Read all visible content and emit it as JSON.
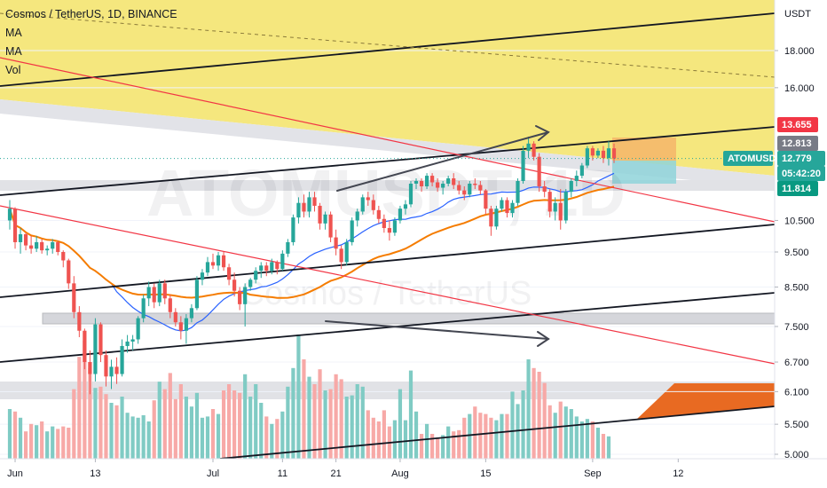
{
  "header": {
    "title": "Cosmos / TetherUS, 1D, BINANCE",
    "indicators": [
      "MA",
      "MA",
      "Vol"
    ]
  },
  "watermark": {
    "symbol": "ATOMUSDT, 1D",
    "name": "Cosmos / TetherUS"
  },
  "chart_data": {
    "type": "candlestick",
    "currency": "USDT",
    "y_scale": "log",
    "ylim": [
      4.85,
      22.5
    ],
    "y_ticks": [
      "18.000",
      "16.000",
      "10.500",
      "9.500",
      "8.500",
      "7.500",
      "6.700",
      "6.100",
      "5.500",
      "5.000"
    ],
    "x_ticks": [
      "Jun",
      "13",
      "Jul",
      "11",
      "21",
      "Aug",
      "15",
      "Sep",
      "12"
    ],
    "price_labels": [
      {
        "name": "level-high",
        "text": "13.655",
        "value": 13.655,
        "color": "#f23645"
      },
      {
        "name": "level-mid",
        "text": "12.813",
        "value": 12.813,
        "color": "#787b86"
      },
      {
        "name": "symbol",
        "text": "ATOMUSDT",
        "value": 12.779,
        "color": "#26a69a"
      },
      {
        "name": "last-price",
        "text": "12.779",
        "value": 12.779,
        "color": "#26a69a"
      },
      {
        "name": "countdown",
        "text": "05:42:20",
        "value": 12.45,
        "color": "#26a69a"
      },
      {
        "name": "level-low",
        "text": "11.814",
        "value": 11.814,
        "color": "#089981"
      }
    ],
    "up_color": "#26a69a",
    "down_color": "#ef5350",
    "ma_fast_color": "#2962ff",
    "ma_slow_color": "#f57c00",
    "candles": [
      [
        10.5,
        11.2,
        10.2,
        10.9
      ],
      [
        10.9,
        10.95,
        9.6,
        9.8
      ],
      [
        9.8,
        10.25,
        9.45,
        10.05
      ],
      [
        10.05,
        10.1,
        9.55,
        9.7
      ],
      [
        9.7,
        10.0,
        9.45,
        9.6
      ],
      [
        9.6,
        10.0,
        9.5,
        9.8
      ],
      [
        9.8,
        9.9,
        9.45,
        9.55
      ],
      [
        9.55,
        9.7,
        9.4,
        9.6
      ],
      [
        9.6,
        9.9,
        9.45,
        9.8
      ],
      [
        9.8,
        9.85,
        9.4,
        9.5
      ],
      [
        9.5,
        9.55,
        9.05,
        9.25
      ],
      [
        9.25,
        9.3,
        8.45,
        8.6
      ],
      [
        8.6,
        8.8,
        7.7,
        7.85
      ],
      [
        7.85,
        8.0,
        7.25,
        7.4
      ],
      [
        7.4,
        7.45,
        6.55,
        6.7
      ],
      [
        6.7,
        6.95,
        6.05,
        6.45
      ],
      [
        6.45,
        7.7,
        6.3,
        7.55
      ],
      [
        7.55,
        7.6,
        6.7,
        6.85
      ],
      [
        6.85,
        6.95,
        6.2,
        6.4
      ],
      [
        6.4,
        6.75,
        6.15,
        6.6
      ],
      [
        6.6,
        6.8,
        6.25,
        6.45
      ],
      [
        6.45,
        7.2,
        6.4,
        7.05
      ],
      [
        7.05,
        7.3,
        6.9,
        7.15
      ],
      [
        7.15,
        7.3,
        6.95,
        7.2
      ],
      [
        7.2,
        7.75,
        7.1,
        7.7
      ],
      [
        7.7,
        8.3,
        7.6,
        8.2
      ],
      [
        8.2,
        8.65,
        8.0,
        8.5
      ],
      [
        8.5,
        8.6,
        7.95,
        8.1
      ],
      [
        8.1,
        8.7,
        8.0,
        8.6
      ],
      [
        8.6,
        8.7,
        8.05,
        8.2
      ],
      [
        8.2,
        8.3,
        7.7,
        7.85
      ],
      [
        7.85,
        7.95,
        7.5,
        7.6
      ],
      [
        7.6,
        7.75,
        7.2,
        7.4
      ],
      [
        7.4,
        7.8,
        7.1,
        7.7
      ],
      [
        7.7,
        8.05,
        7.6,
        7.95
      ],
      [
        7.95,
        8.8,
        7.9,
        8.7
      ],
      [
        8.7,
        9.0,
        8.55,
        8.9
      ],
      [
        8.9,
        9.35,
        8.8,
        9.2
      ],
      [
        9.2,
        9.45,
        9.0,
        9.1
      ],
      [
        9.1,
        9.5,
        8.95,
        9.4
      ],
      [
        9.4,
        9.5,
        8.95,
        9.05
      ],
      [
        9.05,
        9.15,
        8.55,
        8.7
      ],
      [
        8.7,
        8.9,
        8.25,
        8.4
      ],
      [
        8.4,
        8.5,
        7.9,
        8.05
      ],
      [
        8.05,
        8.6,
        7.5,
        8.5
      ],
      [
        8.5,
        8.75,
        8.4,
        8.7
      ],
      [
        8.7,
        9.05,
        8.6,
        8.95
      ],
      [
        8.95,
        9.2,
        8.75,
        9.1
      ],
      [
        9.1,
        9.2,
        8.8,
        8.95
      ],
      [
        8.95,
        9.3,
        8.85,
        9.2
      ],
      [
        9.2,
        9.25,
        8.85,
        9.0
      ],
      [
        9.0,
        9.55,
        8.95,
        9.45
      ],
      [
        9.45,
        9.9,
        9.35,
        9.8
      ],
      [
        9.8,
        10.7,
        9.7,
        10.6
      ],
      [
        10.6,
        11.3,
        10.4,
        11.1
      ],
      [
        11.1,
        11.4,
        10.6,
        10.8
      ],
      [
        10.8,
        11.5,
        10.6,
        11.3
      ],
      [
        11.3,
        11.5,
        10.8,
        11.0
      ],
      [
        11.0,
        11.1,
        10.2,
        10.4
      ],
      [
        10.4,
        10.8,
        10.2,
        10.7
      ],
      [
        10.7,
        10.8,
        9.8,
        9.95
      ],
      [
        9.95,
        10.2,
        9.4,
        9.6
      ],
      [
        9.6,
        9.7,
        9.0,
        9.2
      ],
      [
        9.2,
        9.9,
        9.1,
        9.8
      ],
      [
        9.8,
        10.6,
        9.7,
        10.5
      ],
      [
        10.5,
        10.9,
        10.3,
        10.8
      ],
      [
        10.8,
        11.4,
        10.7,
        11.3
      ],
      [
        11.3,
        11.5,
        11.0,
        11.2
      ],
      [
        11.2,
        11.4,
        10.7,
        10.85
      ],
      [
        10.85,
        11.0,
        10.4,
        10.55
      ],
      [
        10.55,
        10.7,
        10.1,
        10.25
      ],
      [
        10.25,
        10.5,
        9.85,
        10.1
      ],
      [
        10.1,
        10.6,
        10.0,
        10.5
      ],
      [
        10.5,
        11.0,
        10.4,
        10.9
      ],
      [
        10.9,
        11.2,
        10.7,
        11.05
      ],
      [
        11.05,
        11.9,
        10.95,
        11.8
      ],
      [
        11.8,
        12.0,
        11.6,
        11.9
      ],
      [
        11.9,
        12.0,
        11.5,
        11.7
      ],
      [
        11.7,
        12.2,
        11.6,
        12.1
      ],
      [
        12.1,
        12.2,
        11.7,
        11.85
      ],
      [
        11.85,
        12.0,
        11.5,
        11.65
      ],
      [
        11.65,
        11.9,
        11.4,
        11.8
      ],
      [
        11.8,
        12.1,
        11.7,
        12.0
      ],
      [
        12.0,
        12.2,
        11.6,
        11.75
      ],
      [
        11.75,
        11.9,
        11.4,
        11.55
      ],
      [
        11.55,
        11.7,
        11.2,
        11.4
      ],
      [
        11.4,
        11.9,
        11.3,
        11.8
      ],
      [
        11.8,
        12.0,
        11.6,
        11.75
      ],
      [
        11.75,
        11.9,
        11.4,
        11.55
      ],
      [
        11.55,
        11.6,
        10.7,
        10.9
      ],
      [
        10.9,
        11.0,
        10.0,
        10.3
      ],
      [
        10.3,
        11.0,
        10.2,
        10.9
      ],
      [
        10.9,
        11.3,
        10.8,
        11.2
      ],
      [
        11.2,
        11.3,
        10.6,
        10.75
      ],
      [
        10.75,
        11.2,
        10.6,
        11.1
      ],
      [
        11.1,
        12.0,
        11.0,
        11.9
      ],
      [
        11.9,
        13.3,
        11.8,
        13.1
      ],
      [
        13.1,
        13.7,
        12.8,
        13.4
      ],
      [
        13.4,
        13.5,
        12.7,
        12.85
      ],
      [
        12.85,
        13.0,
        11.5,
        11.7
      ],
      [
        11.7,
        11.9,
        11.3,
        11.5
      ],
      [
        11.5,
        11.6,
        10.6,
        10.8
      ],
      [
        10.8,
        11.3,
        10.5,
        11.1
      ],
      [
        11.1,
        11.6,
        10.2,
        10.5
      ],
      [
        10.5,
        11.6,
        10.4,
        11.5
      ],
      [
        11.5,
        12.0,
        11.3,
        11.9
      ],
      [
        11.9,
        12.3,
        11.7,
        12.1
      ],
      [
        12.1,
        12.6,
        12.0,
        12.5
      ],
      [
        12.5,
        13.3,
        12.4,
        13.2
      ],
      [
        13.2,
        13.3,
        12.7,
        12.9
      ],
      [
        12.9,
        13.2,
        12.8,
        13.1
      ],
      [
        13.1,
        13.3,
        12.6,
        12.8
      ],
      [
        12.8,
        13.5,
        12.5,
        13.2
      ],
      [
        13.2,
        13.4,
        12.6,
        12.779
      ]
    ],
    "volume": [
      {
        "i": 0,
        "v": 0.4
      },
      {
        "i": 1,
        "v": 0.38
      },
      {
        "i": 2,
        "v": 0.33
      },
      {
        "i": 3,
        "v": 0.22
      },
      {
        "i": 4,
        "v": 0.28
      },
      {
        "i": 5,
        "v": 0.27
      },
      {
        "i": 6,
        "v": 0.3
      },
      {
        "i": 7,
        "v": 0.22
      },
      {
        "i": 8,
        "v": 0.26
      },
      {
        "i": 9,
        "v": 0.24
      },
      {
        "i": 10,
        "v": 0.26
      },
      {
        "i": 11,
        "v": 0.25
      },
      {
        "i": 12,
        "v": 0.56
      },
      {
        "i": 13,
        "v": 0.82
      },
      {
        "i": 14,
        "v": 0.95
      },
      {
        "i": 15,
        "v": 0.73
      },
      {
        "i": 16,
        "v": 0.57
      },
      {
        "i": 17,
        "v": 0.58
      },
      {
        "i": 18,
        "v": 0.52
      },
      {
        "i": 19,
        "v": 0.45
      },
      {
        "i": 20,
        "v": 0.43
      },
      {
        "i": 21,
        "v": 0.5
      },
      {
        "i": 22,
        "v": 0.37
      },
      {
        "i": 23,
        "v": 0.34
      },
      {
        "i": 24,
        "v": 0.33
      },
      {
        "i": 25,
        "v": 0.35
      },
      {
        "i": 26,
        "v": 0.3
      },
      {
        "i": 27,
        "v": 0.47
      },
      {
        "i": 28,
        "v": 0.62
      },
      {
        "i": 29,
        "v": 0.56
      },
      {
        "i": 30,
        "v": 0.69
      },
      {
        "i": 31,
        "v": 0.48
      },
      {
        "i": 32,
        "v": 0.6
      },
      {
        "i": 33,
        "v": 0.5
      },
      {
        "i": 34,
        "v": 0.42
      },
      {
        "i": 35,
        "v": 0.53
      },
      {
        "i": 36,
        "v": 0.33
      },
      {
        "i": 37,
        "v": 0.34
      },
      {
        "i": 38,
        "v": 0.4
      },
      {
        "i": 39,
        "v": 0.36
      },
      {
        "i": 40,
        "v": 0.55
      },
      {
        "i": 41,
        "v": 0.6
      },
      {
        "i": 42,
        "v": 0.55
      },
      {
        "i": 43,
        "v": 0.53
      },
      {
        "i": 44,
        "v": 0.68
      },
      {
        "i": 45,
        "v": 0.5
      },
      {
        "i": 46,
        "v": 0.6
      },
      {
        "i": 47,
        "v": 0.45
      },
      {
        "i": 48,
        "v": 0.34
      },
      {
        "i": 49,
        "v": 0.28
      },
      {
        "i": 50,
        "v": 0.32
      },
      {
        "i": 51,
        "v": 0.38
      },
      {
        "i": 52,
        "v": 0.58
      },
      {
        "i": 53,
        "v": 0.73
      },
      {
        "i": 54,
        "v": 1.0
      },
      {
        "i": 55,
        "v": 0.8
      },
      {
        "i": 56,
        "v": 0.66
      },
      {
        "i": 57,
        "v": 0.6
      },
      {
        "i": 58,
        "v": 0.72
      },
      {
        "i": 59,
        "v": 0.55
      },
      {
        "i": 60,
        "v": 0.56
      },
      {
        "i": 61,
        "v": 0.68
      },
      {
        "i": 62,
        "v": 0.64
      },
      {
        "i": 63,
        "v": 0.5
      },
      {
        "i": 64,
        "v": 0.51
      },
      {
        "i": 65,
        "v": 0.6
      },
      {
        "i": 66,
        "v": 0.58
      },
      {
        "i": 67,
        "v": 0.39
      },
      {
        "i": 68,
        "v": 0.33
      },
      {
        "i": 69,
        "v": 0.3
      },
      {
        "i": 70,
        "v": 0.39
      },
      {
        "i": 71,
        "v": 0.26
      },
      {
        "i": 72,
        "v": 0.31
      },
      {
        "i": 73,
        "v": 0.56
      },
      {
        "i": 74,
        "v": 0.31
      },
      {
        "i": 75,
        "v": 0.71
      },
      {
        "i": 76,
        "v": 0.38
      },
      {
        "i": 77,
        "v": 0.2
      },
      {
        "i": 78,
        "v": 0.28
      },
      {
        "i": 79,
        "v": 0.2
      },
      {
        "i": 80,
        "v": 0.17
      },
      {
        "i": 81,
        "v": 0.19
      },
      {
        "i": 82,
        "v": 0.26
      },
      {
        "i": 83,
        "v": 0.22
      },
      {
        "i": 84,
        "v": 0.23
      },
      {
        "i": 85,
        "v": 0.33
      },
      {
        "i": 86,
        "v": 0.36
      },
      {
        "i": 87,
        "v": 0.42
      },
      {
        "i": 88,
        "v": 0.37
      },
      {
        "i": 89,
        "v": 0.36
      },
      {
        "i": 90,
        "v": 0.33
      },
      {
        "i": 91,
        "v": 0.31
      },
      {
        "i": 92,
        "v": 0.36
      },
      {
        "i": 93,
        "v": 0.36
      },
      {
        "i": 94,
        "v": 0.54
      },
      {
        "i": 95,
        "v": 0.44
      },
      {
        "i": 96,
        "v": 0.55
      },
      {
        "i": 97,
        "v": 0.8
      },
      {
        "i": 98,
        "v": 0.73
      },
      {
        "i": 99,
        "v": 0.7
      },
      {
        "i": 100,
        "v": 0.61
      },
      {
        "i": 101,
        "v": 0.43
      },
      {
        "i": 102,
        "v": 0.37
      },
      {
        "i": 103,
        "v": 0.46
      },
      {
        "i": 104,
        "v": 0.42
      },
      {
        "i": 105,
        "v": 0.4
      },
      {
        "i": 106,
        "v": 0.34
      },
      {
        "i": 107,
        "v": 0.3
      },
      {
        "i": 108,
        "v": 0.32
      },
      {
        "i": 109,
        "v": 0.3
      },
      {
        "i": 110,
        "v": 0.25
      },
      {
        "i": 111,
        "v": 0.2
      },
      {
        "i": 112,
        "v": 0.18
      }
    ]
  }
}
